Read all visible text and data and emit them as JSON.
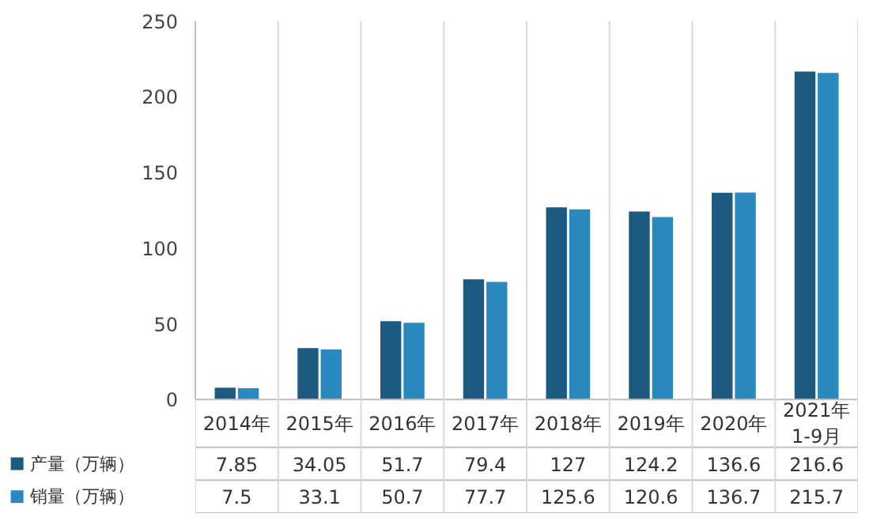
{
  "chart_data": {
    "type": "bar",
    "categories": [
      "2014年",
      "2015年",
      "2016年",
      "2017年",
      "2018年",
      "2019年",
      "2020年",
      "2021年\n1-9月"
    ],
    "series": [
      {
        "name": "产量（万辆）",
        "color": "#1d5a80",
        "values": [
          7.85,
          34.05,
          51.7,
          79.4,
          127,
          124.2,
          136.6,
          216.6
        ]
      },
      {
        "name": "销量（万辆）",
        "color": "#2a8ac0",
        "values": [
          7.5,
          33.1,
          50.7,
          77.7,
          125.6,
          120.6,
          136.7,
          215.7
        ]
      }
    ],
    "ylim": [
      0,
      250
    ],
    "yticks": [
      0,
      50,
      100,
      150,
      200,
      250
    ],
    "grid": false,
    "legend": "bottom left",
    "data_labels": true
  }
}
